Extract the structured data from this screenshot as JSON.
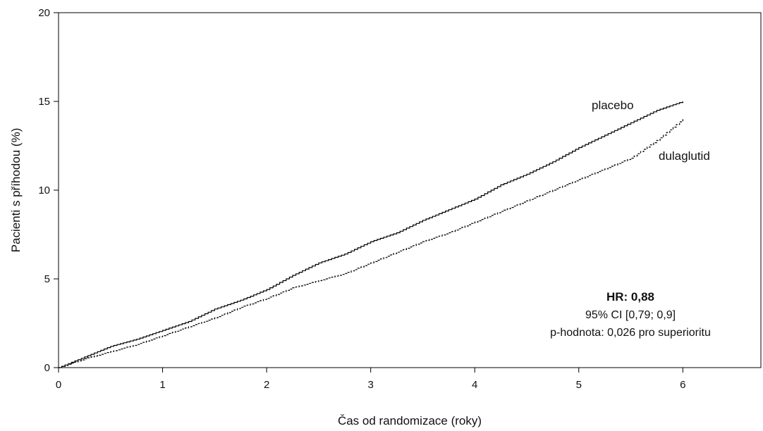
{
  "chart_data": {
    "type": "line",
    "title": "",
    "xlabel": "Čas od randomizace (roky)",
    "ylabel": "Pacienti s příhodou (%)",
    "xlim": [
      0,
      6.75
    ],
    "ylim": [
      0,
      20
    ],
    "xticks": [
      0,
      1,
      2,
      3,
      4,
      5,
      6
    ],
    "yticks": [
      0,
      5,
      10,
      15,
      20
    ],
    "grid": false,
    "legend": "none",
    "series": [
      {
        "name": "placebo",
        "line_style": "solid",
        "color": "#000000",
        "x": [
          0,
          0.25,
          0.5,
          0.75,
          1.0,
          1.25,
          1.5,
          1.75,
          2.0,
          2.25,
          2.5,
          2.75,
          3.0,
          3.25,
          3.5,
          3.75,
          4.0,
          4.25,
          4.5,
          4.75,
          5.0,
          5.25,
          5.5,
          5.75,
          6.0
        ],
        "y": [
          0,
          0.6,
          1.2,
          1.6,
          2.1,
          2.6,
          3.3,
          3.8,
          4.4,
          5.2,
          5.9,
          6.4,
          7.1,
          7.6,
          8.3,
          8.9,
          9.5,
          10.3,
          10.9,
          11.6,
          12.4,
          13.1,
          13.8,
          14.5,
          15.0
        ]
      },
      {
        "name": "dulaglutid",
        "line_style": "dashed",
        "color": "#000000",
        "x": [
          0,
          0.25,
          0.5,
          0.75,
          1.0,
          1.25,
          1.5,
          1.75,
          2.0,
          2.25,
          2.5,
          2.75,
          3.0,
          3.25,
          3.5,
          3.75,
          4.0,
          4.25,
          4.5,
          4.75,
          5.0,
          5.25,
          5.5,
          5.75,
          6.0
        ],
        "y": [
          0,
          0.5,
          0.9,
          1.3,
          1.8,
          2.3,
          2.8,
          3.4,
          3.9,
          4.5,
          4.9,
          5.3,
          5.9,
          6.5,
          7.1,
          7.6,
          8.2,
          8.8,
          9.4,
          10.0,
          10.6,
          11.2,
          11.8,
          12.8,
          14.0
        ]
      }
    ],
    "annotations": {
      "hr_label": "HR:",
      "hr_value": "0,88",
      "ci": "95% CI [0,79; 0,9]",
      "p_value": "p-hodnota: 0,026 pro superioritu"
    }
  }
}
